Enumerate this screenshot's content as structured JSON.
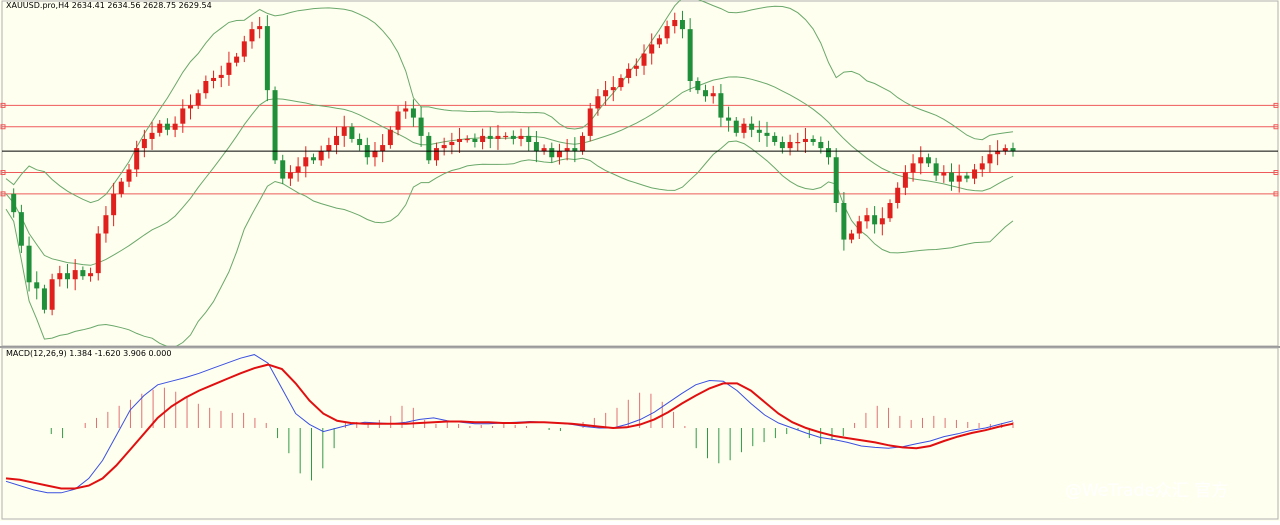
{
  "colors": {
    "background": "#fffff0",
    "bull_candle": "#e0201c",
    "bear_candle": "#1f8f3a",
    "bollinger": "#6aa86a",
    "level_line": "#ee5a5a",
    "price_line": "#000000",
    "macd_line": "#3a50e0",
    "signal_line": "#e01010",
    "hist_pos": "#e07070",
    "hist_neg": "#2f9a45",
    "separator": "#9a9a9a"
  },
  "main_panel": {
    "label": "XAUUSD.pro,H4  2634.41 2634.56 2628.75 2629.54"
  },
  "macd_panel": {
    "label": "MACD(12,26,9) 1.384 -1.620 3.906 0.000"
  },
  "watermark": {
    "text": "@WeTrade众汇 官方"
  },
  "chart_data": [
    {
      "type": "candlestick",
      "symbol": "XAUUSD.pro",
      "timeframe": "H4",
      "last_bar": {
        "open": 2634.41,
        "high": 2634.56,
        "low": 2628.75,
        "close": 2629.54
      },
      "price_path": [
        0.43,
        0.37,
        0.26,
        0.14,
        0.12,
        0.05,
        0.15,
        0.17,
        0.15,
        0.18,
        0.16,
        0.17,
        0.3,
        0.36,
        0.43,
        0.47,
        0.51,
        0.58,
        0.61,
        0.63,
        0.66,
        0.64,
        0.66,
        0.71,
        0.72,
        0.76,
        0.8,
        0.81,
        0.82,
        0.86,
        0.88,
        0.93,
        0.97,
        0.98,
        0.77,
        0.54,
        0.48,
        0.5,
        0.52,
        0.55,
        0.54,
        0.57,
        0.59,
        0.62,
        0.65,
        0.61,
        0.59,
        0.55,
        0.57,
        0.59,
        0.64,
        0.7,
        0.71,
        0.68,
        0.62,
        0.54,
        0.58,
        0.59,
        0.6,
        0.61,
        0.61,
        0.6,
        0.62,
        0.61,
        0.62,
        0.62,
        0.61,
        0.62,
        0.6,
        0.57,
        0.58,
        0.55,
        0.57,
        0.58,
        0.57,
        0.62,
        0.71,
        0.75,
        0.77,
        0.78,
        0.81,
        0.84,
        0.85,
        0.89,
        0.92,
        0.94,
        0.98,
        1.0,
        0.97,
        0.8,
        0.77,
        0.75,
        0.76,
        0.68,
        0.67,
        0.63,
        0.66,
        0.64,
        0.63,
        0.62,
        0.6,
        0.58,
        0.6,
        0.6,
        0.61,
        0.6,
        0.58,
        0.55,
        0.4,
        0.28,
        0.3,
        0.34,
        0.36,
        0.33,
        0.35,
        0.4,
        0.45,
        0.5,
        0.53,
        0.55,
        0.53,
        0.49,
        0.5,
        0.47,
        0.49,
        0.48,
        0.51,
        0.53,
        0.56,
        0.57,
        0.58,
        0.57
      ],
      "horizontal_levels_red": [
        0.72,
        0.65,
        0.5,
        0.43
      ],
      "current_price_line": 0.57,
      "indicators": [
        "Bollinger Bands"
      ]
    },
    {
      "type": "line+bar",
      "indicator": "MACD",
      "params": [
        12,
        26,
        9
      ],
      "values_shown": [
        1.384,
        -1.62,
        3.906,
        0.0
      ],
      "series": [
        {
          "name": "MACD main",
          "kind": "line"
        },
        {
          "name": "Signal",
          "kind": "line"
        },
        {
          "name": "Histogram",
          "kind": "bar"
        }
      ],
      "macd": [
        -0.74,
        -0.8,
        -0.86,
        -0.9,
        -0.9,
        -0.85,
        -0.7,
        -0.45,
        -0.1,
        0.25,
        0.45,
        0.6,
        0.65,
        0.7,
        0.76,
        0.83,
        0.9,
        0.97,
        1.02,
        0.9,
        0.55,
        0.2,
        0.05,
        -0.05,
        0.0,
        0.05,
        0.08,
        0.07,
        0.06,
        0.08,
        0.12,
        0.14,
        0.1,
        0.08,
        0.06,
        0.06,
        0.07,
        0.08,
        0.09,
        0.08,
        0.07,
        0.05,
        0.02,
        0.0,
        0.0,
        0.05,
        0.12,
        0.22,
        0.35,
        0.48,
        0.6,
        0.66,
        0.65,
        0.52,
        0.34,
        0.18,
        0.07,
        0.0,
        -0.07,
        -0.13,
        -0.16,
        -0.2,
        -0.25,
        -0.27,
        -0.28,
        -0.26,
        -0.22,
        -0.18,
        -0.12,
        -0.08,
        -0.03,
        0.0,
        0.05,
        0.1
      ],
      "signal": [
        -0.7,
        -0.72,
        -0.76,
        -0.8,
        -0.84,
        -0.84,
        -0.8,
        -0.7,
        -0.52,
        -0.3,
        -0.08,
        0.14,
        0.3,
        0.42,
        0.52,
        0.6,
        0.68,
        0.76,
        0.83,
        0.88,
        0.82,
        0.62,
        0.38,
        0.2,
        0.1,
        0.07,
        0.06,
        0.06,
        0.06,
        0.06,
        0.07,
        0.08,
        0.09,
        0.09,
        0.08,
        0.08,
        0.07,
        0.07,
        0.08,
        0.08,
        0.07,
        0.06,
        0.04,
        0.02,
        0.0,
        0.01,
        0.05,
        0.12,
        0.22,
        0.34,
        0.45,
        0.55,
        0.62,
        0.62,
        0.52,
        0.36,
        0.2,
        0.08,
        0.0,
        -0.06,
        -0.11,
        -0.14,
        -0.17,
        -0.2,
        -0.24,
        -0.27,
        -0.28,
        -0.25,
        -0.18,
        -0.12,
        -0.07,
        -0.03,
        0.02,
        0.06
      ],
      "histogram": [
        0.0,
        0.0,
        0.0,
        0.0,
        -0.06,
        -0.1,
        0.0,
        0.05,
        0.1,
        0.16,
        0.22,
        0.28,
        0.34,
        0.38,
        0.4,
        0.36,
        0.3,
        0.24,
        0.2,
        0.17,
        0.15,
        0.15,
        0.1,
        0.05,
        -0.1,
        -0.25,
        -0.45,
        -0.52,
        -0.4,
        -0.2,
        0.05,
        0.06,
        0.05,
        0.08,
        0.12,
        0.22,
        0.2,
        0.08,
        0.04,
        0.06,
        0.04,
        0.02,
        0.03,
        0.02,
        0.04,
        0.03,
        0.02,
        0.0,
        -0.02,
        -0.03,
        0.0,
        0.06,
        0.1,
        0.15,
        0.2,
        0.28,
        0.35,
        0.34,
        0.26,
        0.16,
        0.02,
        -0.2,
        -0.3,
        -0.35,
        -0.32,
        -0.24,
        -0.18,
        -0.14,
        -0.1,
        -0.06,
        -0.02,
        -0.1,
        -0.16,
        -0.12,
        -0.08,
        0.05,
        0.15,
        0.22,
        0.2,
        0.12,
        0.08,
        0.1,
        0.12,
        0.1,
        0.08,
        0.06,
        0.05,
        0.04,
        0.05,
        0.06
      ]
    }
  ]
}
